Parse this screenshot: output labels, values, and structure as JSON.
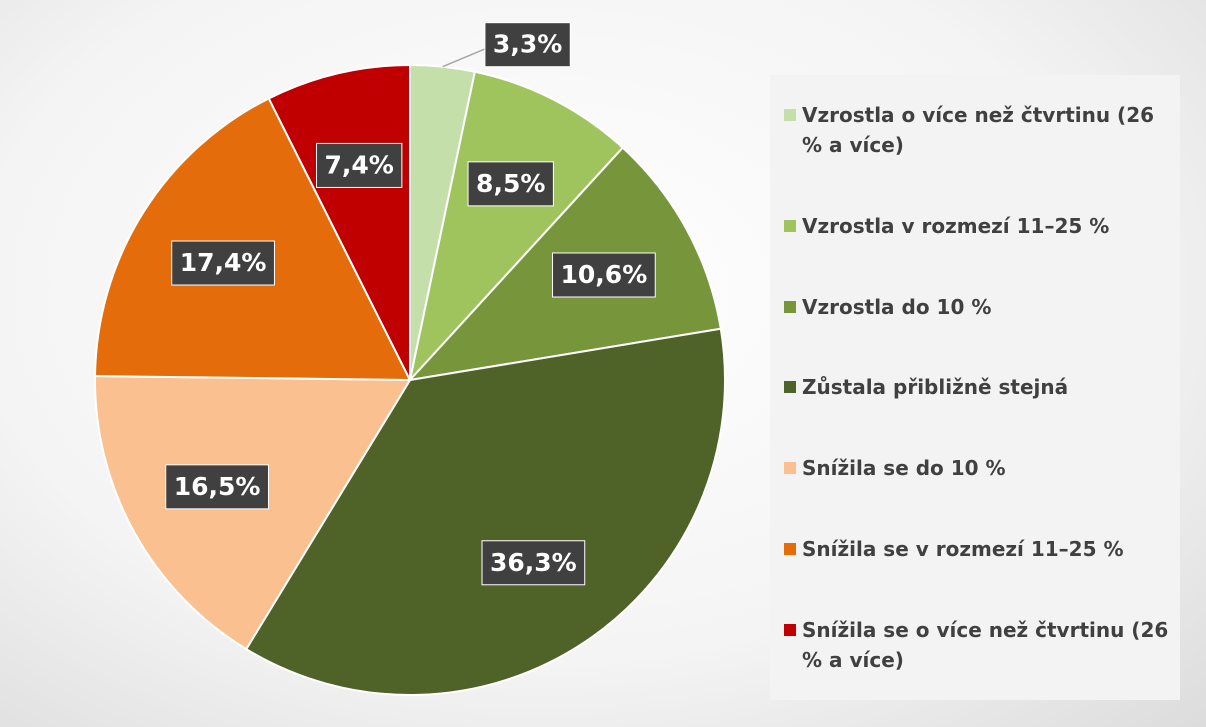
{
  "chart_data": {
    "type": "pie",
    "categories": [
      "Vzrostla o více než čtvrtinu (26 % a více)",
      "Vzrostla v rozmezí 11–25 %",
      "Vzrostla do 10 %",
      "Zůstala přibližně stejná",
      "Snížila se do 10 %",
      "Snížila se v rozmezí 11–25 %",
      "Snížila se o více než čtvrtinu (26 % a více)"
    ],
    "values": [
      3.3,
      8.5,
      10.6,
      36.3,
      16.5,
      17.4,
      7.4
    ],
    "value_labels": [
      "3,3%",
      "8,5%",
      "10,6%",
      "36,3%",
      "16,5%",
      "17,4%",
      "7,4%"
    ],
    "colors": [
      "#c4dfa9",
      "#9fc45e",
      "#77963c",
      "#4f6228",
      "#fac08f",
      "#e46c0a",
      "#c00000"
    ],
    "legend": "right"
  }
}
